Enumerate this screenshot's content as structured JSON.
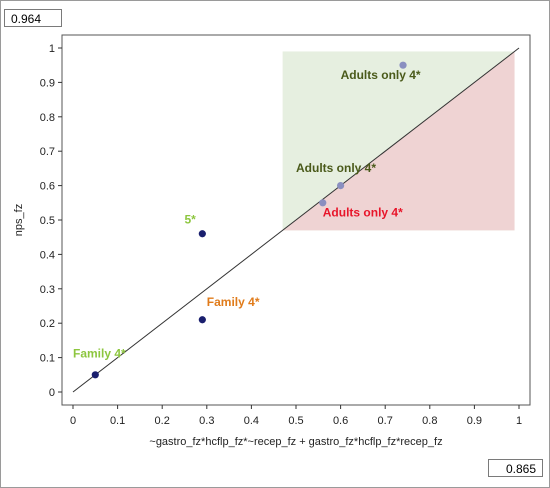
{
  "top_value": "0.964",
  "bottom_value": "0.865",
  "chart_data": {
    "type": "scatter",
    "xlabel": "~gastro_fz*hcflp_fz*~recep_fz + gastro_fz*hcflp_fz*recep_fz",
    "ylabel": "nps_fz",
    "xlim": [
      0,
      1
    ],
    "ylim": [
      0,
      1
    ],
    "x_ticks": [
      "0",
      "0.1",
      "0.2",
      "0.3",
      "0.4",
      "0.5",
      "0.6",
      "0.7",
      "0.8",
      "0.9",
      "1"
    ],
    "y_ticks": [
      "0",
      "0.1",
      "0.2",
      "0.3",
      "0.4",
      "0.5",
      "0.6",
      "0.7",
      "0.8",
      "0.9",
      "1"
    ],
    "diagonal": [
      [
        0,
        0
      ],
      [
        1,
        1
      ]
    ],
    "region_top_value": 0.964,
    "region_bottom_value": 0.865,
    "regions": [
      {
        "x0": 0.47,
        "x1": 0.99,
        "y0": 0.47,
        "y1": 0.99,
        "color": "#e6efe0"
      },
      {
        "x0": 0.47,
        "x1": 0.99,
        "y0": 0.47,
        "y1": 0.99,
        "below_diagonal": true,
        "color": "#efd3d3"
      }
    ],
    "points": [
      {
        "x": 0.05,
        "y": 0.05,
        "color": "#1a1f6e"
      },
      {
        "x": 0.29,
        "y": 0.21,
        "color": "#1a1f6e"
      },
      {
        "x": 0.29,
        "y": 0.46,
        "color": "#1a1f6e"
      },
      {
        "x": 0.56,
        "y": 0.55,
        "color": "#8a8fc0"
      },
      {
        "x": 0.6,
        "y": 0.6,
        "color": "#8a8fc0"
      },
      {
        "x": 0.74,
        "y": 0.95,
        "color": "#8a8fc0"
      }
    ],
    "annotations": [
      {
        "text": "Family 4*",
        "x": 0.0,
        "y": 0.1,
        "color": "#8dc63f"
      },
      {
        "text": "Family 4*",
        "x": 0.3,
        "y": 0.25,
        "color": "#e07b1a"
      },
      {
        "text": "5*",
        "x": 0.25,
        "y": 0.49,
        "color": "#8dc63f"
      },
      {
        "text": "Adults only 4*",
        "x": 0.5,
        "y": 0.64,
        "color": "#4a5a1a"
      },
      {
        "text": "Adults only 4*",
        "x": 0.56,
        "y": 0.51,
        "color": "#e8152a"
      },
      {
        "text": "Adults only 4*",
        "x": 0.6,
        "y": 0.91,
        "color": "#4a5a1a"
      }
    ]
  }
}
